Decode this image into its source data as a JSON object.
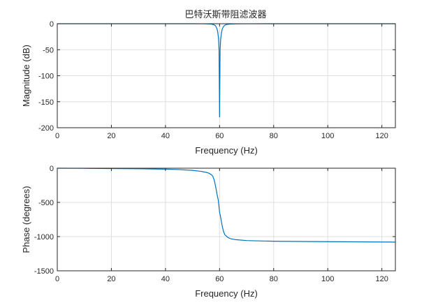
{
  "title": "巴特沃斯带阻滤波器",
  "chart_data": [
    {
      "type": "line",
      "xlabel": "Frequency (Hz)",
      "ylabel": "Magnitude (dB)",
      "xlim": [
        0,
        125
      ],
      "ylim": [
        -200,
        0
      ],
      "xticks": [
        0,
        20,
        40,
        60,
        80,
        100,
        120
      ],
      "yticks": [
        0,
        -50,
        -100,
        -150,
        -200
      ],
      "grid": true,
      "color": "#0072bd",
      "series": [
        {
          "x": [
            0,
            20,
            40,
            50,
            54,
            56,
            57,
            58,
            58.5,
            59,
            59.3,
            59.6,
            59.8,
            60,
            60.2,
            60.4,
            60.7,
            61,
            61.5,
            62,
            63,
            64,
            66,
            70,
            80,
            100,
            125
          ],
          "y": [
            0,
            0,
            0,
            0,
            -0.1,
            -0.3,
            -0.7,
            -2,
            -4,
            -9,
            -15,
            -28,
            -50,
            -180,
            -50,
            -30,
            -18,
            -10,
            -5,
            -2.5,
            -1,
            -0.5,
            -0.2,
            -0.05,
            0,
            0,
            0
          ]
        }
      ]
    },
    {
      "type": "line",
      "xlabel": "Frequency (Hz)",
      "ylabel": "Phase (degrees)",
      "xlim": [
        0,
        125
      ],
      "ylim": [
        -1500,
        0
      ],
      "xticks": [
        0,
        20,
        40,
        60,
        80,
        100,
        120
      ],
      "yticks": [
        0,
        -500,
        -1000,
        -1500
      ],
      "grid": true,
      "color": "#0072bd",
      "series": [
        {
          "x": [
            0,
            10,
            20,
            30,
            40,
            45,
            50,
            53,
            55,
            56,
            57,
            57.5,
            58,
            58.5,
            59,
            59.5,
            60,
            60.5,
            61,
            61.5,
            62,
            63,
            64,
            66,
            70,
            80,
            100,
            125
          ],
          "y": [
            0,
            -2,
            -5,
            -8,
            -14,
            -20,
            -32,
            -45,
            -60,
            -72,
            -95,
            -120,
            -170,
            -260,
            -370,
            -460,
            -640,
            -740,
            -850,
            -930,
            -975,
            -1010,
            -1030,
            -1045,
            -1058,
            -1068,
            -1074,
            -1080
          ]
        }
      ]
    }
  ]
}
